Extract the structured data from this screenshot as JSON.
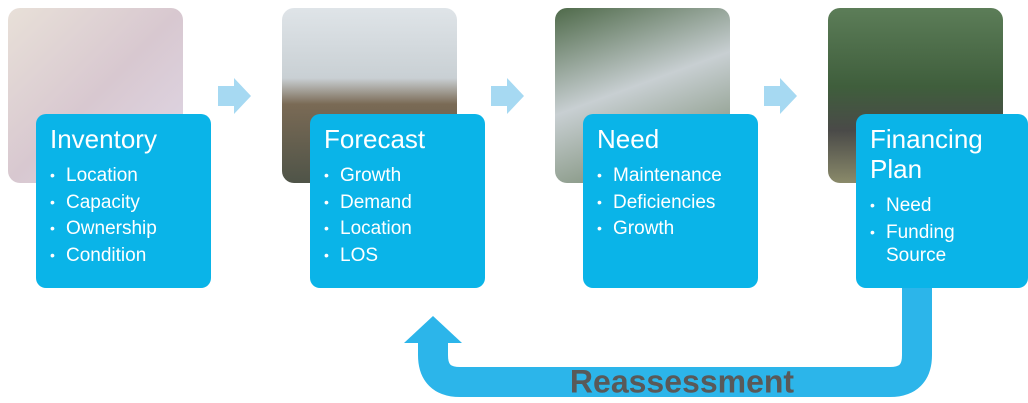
{
  "steps": [
    {
      "title": "Inventory",
      "items": [
        "Location",
        "Capacity",
        "Ownership",
        "Condition"
      ]
    },
    {
      "title": "Forecast",
      "items": [
        "Growth",
        "Demand",
        "Location",
        "LOS"
      ]
    },
    {
      "title": "Need",
      "items": [
        "Maintenance",
        "Deficiencies",
        "Growth"
      ]
    },
    {
      "title": "Financing Plan",
      "items": [
        "Need",
        "Funding Source"
      ]
    }
  ],
  "loop_label": "Reassessment"
}
